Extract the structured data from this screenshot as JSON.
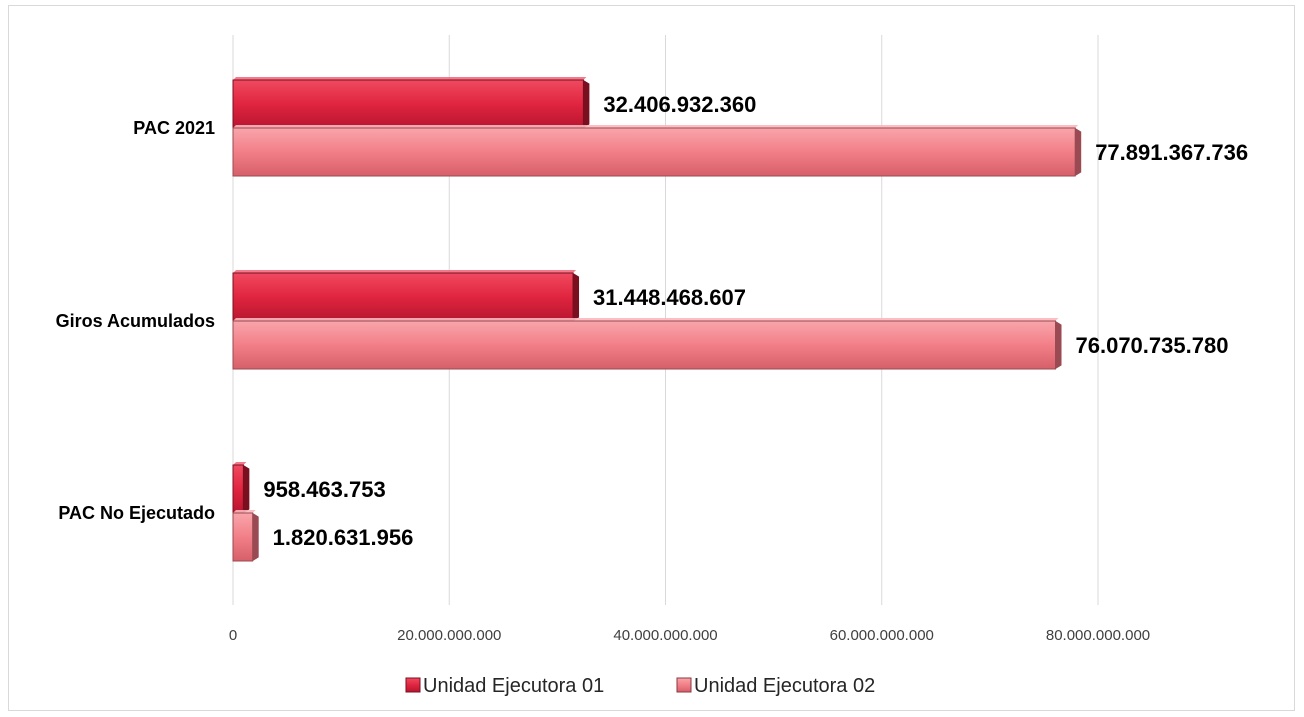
{
  "chart_data": {
    "type": "bar",
    "orientation": "horizontal",
    "categories": [
      "PAC 2021",
      "Giros Acumulados",
      "PAC No Ejecutado"
    ],
    "series": [
      {
        "name": "Unidad Ejecutora 01",
        "values": [
          32406932360,
          31448468607,
          958463753
        ],
        "labels": [
          "32.406.932.360",
          "31.448.468.607",
          "958.463.753"
        ],
        "color": "#e0253f"
      },
      {
        "name": "Unidad Ejecutora 02",
        "values": [
          77891367736,
          76070735780,
          1820631956
        ],
        "labels": [
          "77.891.367.736",
          "76.070.735.780",
          "1.820.631.956"
        ],
        "color": "#f27f88"
      }
    ],
    "x_ticks": [
      0,
      20000000000,
      40000000000,
      60000000000,
      80000000000
    ],
    "x_tick_labels": [
      "0",
      "20.000.000.000",
      "40.000.000.000",
      "60.000.000.000",
      "80.000.000.000"
    ],
    "xlim": [
      0,
      100000000000
    ],
    "grid": "vertical",
    "legend": "bottom"
  }
}
